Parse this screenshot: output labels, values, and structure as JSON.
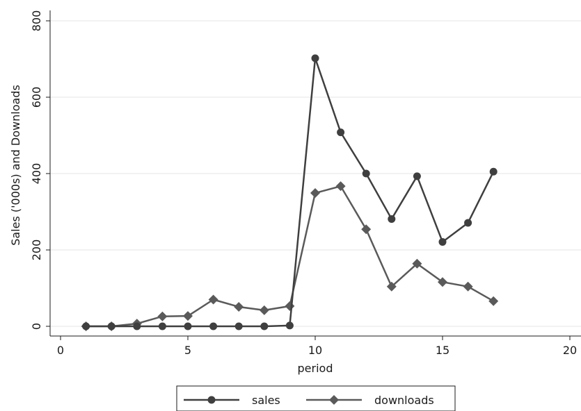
{
  "chart_data": {
    "type": "line",
    "xlabel": "period",
    "ylabel": "Sales ('000s) and Downloads",
    "xlim": [
      0,
      20
    ],
    "ylim": [
      0,
      800
    ],
    "xticks": [
      0,
      5,
      10,
      15,
      20
    ],
    "yticks": [
      0,
      200,
      400,
      600,
      800
    ],
    "grid": "horizontal",
    "legend": "bottom",
    "series": [
      {
        "name": "sales",
        "marker": "circle",
        "color": "#3f3f3f",
        "x": [
          1,
          2,
          3,
          4,
          5,
          6,
          7,
          8,
          9,
          10,
          11,
          12,
          13,
          14,
          15,
          16,
          17
        ],
        "y": [
          0,
          0,
          0,
          0,
          0,
          0,
          0,
          0,
          2,
          702,
          508,
          400,
          281,
          393,
          221,
          271,
          405
        ]
      },
      {
        "name": "downloads",
        "marker": "diamond",
        "color": "#5a5a5a",
        "x": [
          1,
          2,
          3,
          4,
          5,
          6,
          7,
          8,
          9,
          10,
          11,
          12,
          13,
          14,
          15,
          16,
          17
        ],
        "y": [
          0,
          0,
          7,
          26,
          27,
          70,
          51,
          42,
          53,
          349,
          367,
          254,
          104,
          164,
          116,
          104,
          66
        ]
      }
    ]
  }
}
